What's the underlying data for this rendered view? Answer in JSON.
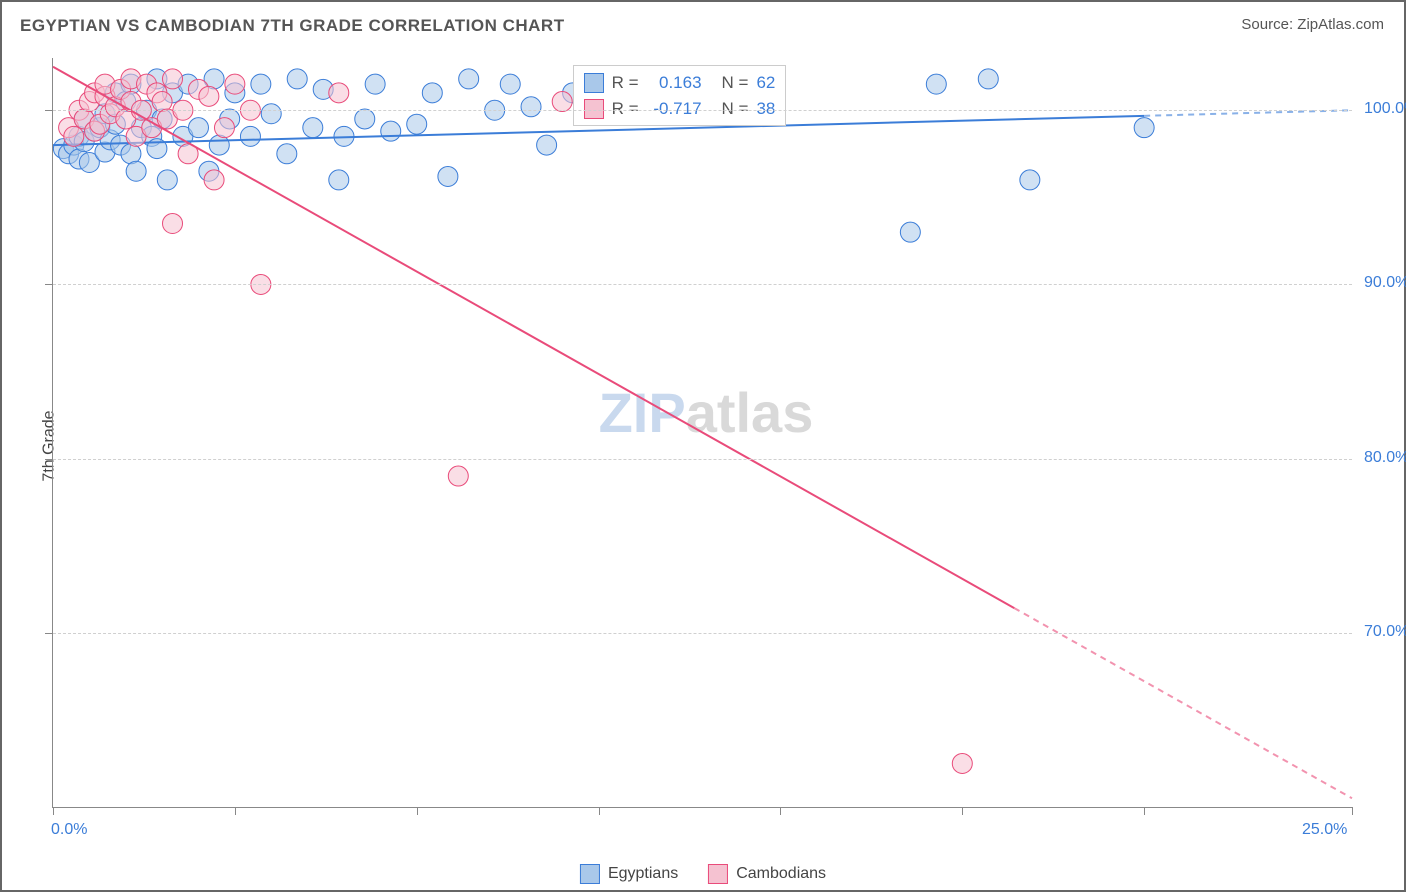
{
  "title": "EGYPTIAN VS CAMBODIAN 7TH GRADE CORRELATION CHART",
  "source_label": "Source: ",
  "source_value": "ZipAtlas.com",
  "ylabel": "7th Grade",
  "watermark_a": "ZIP",
  "watermark_b": "atlas",
  "watermark_color_a": "#c9d9ee",
  "watermark_color_b": "#d9d9d9",
  "watermark_fontsize": 56,
  "colors": {
    "blue_fill": "#a9c8ea",
    "blue_stroke": "#3b7dd8",
    "pink_fill": "#f5c2d1",
    "pink_stroke": "#e94b7a",
    "axis_text": "#3b7dd8",
    "title_text": "#555555",
    "grid": "#d0d0d0",
    "border": "#666666"
  },
  "chart": {
    "type": "scatter",
    "xlim": [
      0,
      25
    ],
    "ylim": [
      60,
      103
    ],
    "xtick_positions": [
      0,
      3.5,
      7,
      10.5,
      14,
      17.5,
      21,
      25
    ],
    "xtick_labels": {
      "0": "0.0%",
      "25": "25.0%"
    },
    "ytick_positions": [
      70,
      80,
      90,
      100
    ],
    "ytick_labels": {
      "70": "70.0%",
      "80": "80.0%",
      "90": "90.0%",
      "100": "100.0%"
    },
    "marker_radius": 10,
    "marker_opacity": 0.55,
    "line_width": 2,
    "series": [
      {
        "name": "Egyptians",
        "color_fill": "#a9c8ea",
        "color_stroke": "#3b7dd8",
        "R": "0.163",
        "N": "62",
        "points": [
          [
            0.2,
            97.8
          ],
          [
            0.3,
            97.5
          ],
          [
            0.4,
            98.0
          ],
          [
            0.5,
            97.2
          ],
          [
            0.5,
            98.5
          ],
          [
            0.6,
            99.5
          ],
          [
            0.6,
            98.2
          ],
          [
            0.7,
            97.0
          ],
          [
            0.8,
            98.8
          ],
          [
            0.9,
            99.0
          ],
          [
            1.0,
            97.6
          ],
          [
            1.0,
            99.8
          ],
          [
            1.1,
            98.3
          ],
          [
            1.2,
            101.0
          ],
          [
            1.2,
            99.2
          ],
          [
            1.3,
            98.0
          ],
          [
            1.4,
            100.5
          ],
          [
            1.5,
            97.5
          ],
          [
            1.5,
            101.5
          ],
          [
            1.6,
            96.5
          ],
          [
            1.7,
            99.0
          ],
          [
            1.8,
            100.0
          ],
          [
            1.9,
            98.5
          ],
          [
            2.0,
            101.8
          ],
          [
            2.0,
            97.8
          ],
          [
            2.1,
            99.5
          ],
          [
            2.2,
            96.0
          ],
          [
            2.3,
            101.0
          ],
          [
            2.5,
            98.5
          ],
          [
            2.6,
            101.5
          ],
          [
            2.8,
            99.0
          ],
          [
            3.0,
            96.5
          ],
          [
            3.1,
            101.8
          ],
          [
            3.2,
            98.0
          ],
          [
            3.4,
            99.5
          ],
          [
            3.5,
            101.0
          ],
          [
            3.8,
            98.5
          ],
          [
            4.0,
            101.5
          ],
          [
            4.2,
            99.8
          ],
          [
            4.5,
            97.5
          ],
          [
            4.7,
            101.8
          ],
          [
            5.0,
            99.0
          ],
          [
            5.2,
            101.2
          ],
          [
            5.5,
            96.0
          ],
          [
            5.6,
            98.5
          ],
          [
            6.0,
            99.5
          ],
          [
            6.2,
            101.5
          ],
          [
            6.5,
            98.8
          ],
          [
            7.0,
            99.2
          ],
          [
            7.3,
            101.0
          ],
          [
            7.6,
            96.2
          ],
          [
            8.0,
            101.8
          ],
          [
            8.5,
            100.0
          ],
          [
            8.8,
            101.5
          ],
          [
            9.2,
            100.2
          ],
          [
            9.5,
            98.0
          ],
          [
            10.0,
            101.0
          ],
          [
            16.5,
            93.0
          ],
          [
            17.0,
            101.5
          ],
          [
            18.0,
            101.8
          ],
          [
            18.8,
            96.0
          ],
          [
            21.0,
            99.0
          ]
        ],
        "trend": {
          "x1": 0,
          "y1": 98.0,
          "x2": 25,
          "y2": 100.0,
          "extrapolate_from_x": 21
        }
      },
      {
        "name": "Cambodians",
        "color_fill": "#f5c2d1",
        "color_stroke": "#e94b7a",
        "R": "-0.717",
        "N": "38",
        "points": [
          [
            0.3,
            99.0
          ],
          [
            0.4,
            98.5
          ],
          [
            0.5,
            100.0
          ],
          [
            0.6,
            99.5
          ],
          [
            0.7,
            100.5
          ],
          [
            0.8,
            98.8
          ],
          [
            0.8,
            101.0
          ],
          [
            0.9,
            99.2
          ],
          [
            1.0,
            100.8
          ],
          [
            1.0,
            101.5
          ],
          [
            1.1,
            99.8
          ],
          [
            1.2,
            100.2
          ],
          [
            1.3,
            101.2
          ],
          [
            1.4,
            99.5
          ],
          [
            1.5,
            100.5
          ],
          [
            1.5,
            101.8
          ],
          [
            1.6,
            98.5
          ],
          [
            1.7,
            100.0
          ],
          [
            1.8,
            101.5
          ],
          [
            1.9,
            99.0
          ],
          [
            2.0,
            101.0
          ],
          [
            2.1,
            100.5
          ],
          [
            2.2,
            99.5
          ],
          [
            2.3,
            101.8
          ],
          [
            2.5,
            100.0
          ],
          [
            2.6,
            97.5
          ],
          [
            2.8,
            101.2
          ],
          [
            3.0,
            100.8
          ],
          [
            3.1,
            96.0
          ],
          [
            3.3,
            99.0
          ],
          [
            3.5,
            101.5
          ],
          [
            3.8,
            100.0
          ],
          [
            2.3,
            93.5
          ],
          [
            4.0,
            90.0
          ],
          [
            5.5,
            101.0
          ],
          [
            7.8,
            79.0
          ],
          [
            9.8,
            100.5
          ],
          [
            17.5,
            62.5
          ]
        ],
        "trend": {
          "x1": 0,
          "y1": 102.5,
          "x2": 25,
          "y2": 60.5,
          "extrapolate_from_x": 18.5
        }
      }
    ]
  },
  "stats_box": {
    "rows": [
      {
        "swatch_fill": "#a9c8ea",
        "swatch_stroke": "#3b7dd8",
        "r_label": "R =",
        "r_value": "0.163",
        "n_label": "N =",
        "n_value": "62"
      },
      {
        "swatch_fill": "#f5c2d1",
        "swatch_stroke": "#e94b7a",
        "r_label": "R =",
        "r_value": "-0.717",
        "n_label": "N =",
        "n_value": "38"
      }
    ],
    "label_color": "#555555",
    "value_color": "#3b7dd8"
  },
  "legend": {
    "items": [
      {
        "label": "Egyptians",
        "fill": "#a9c8ea",
        "stroke": "#3b7dd8"
      },
      {
        "label": "Cambodians",
        "fill": "#f5c2d1",
        "stroke": "#e94b7a"
      }
    ]
  }
}
